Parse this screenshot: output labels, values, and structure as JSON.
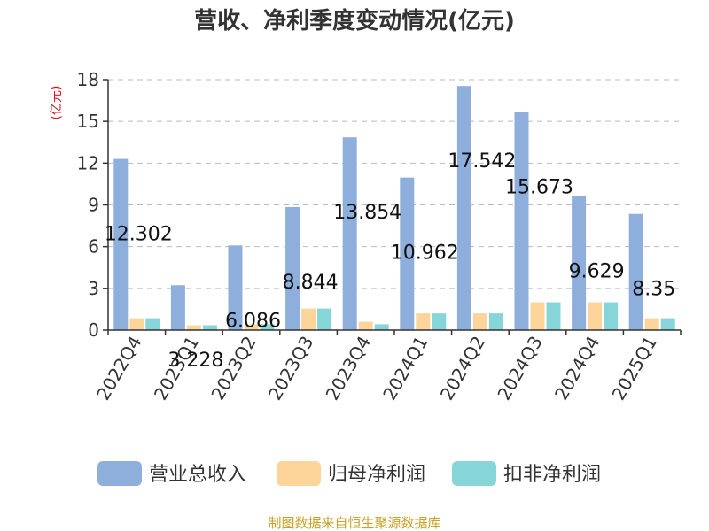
{
  "chart_data": {
    "type": "bar",
    "title": "营收、净利季度变动情况(亿元)",
    "ylabel": "(亿元)",
    "xlabel": "",
    "ylim": [
      0,
      18
    ],
    "yticks": [
      0,
      3,
      6,
      9,
      12,
      15,
      18
    ],
    "grid": true,
    "legend_position": "bottom",
    "categories": [
      "2022Q4",
      "2023Q1",
      "2023Q2",
      "2023Q3",
      "2023Q4",
      "2024Q1",
      "2024Q2",
      "2024Q3",
      "2024Q4",
      "2025Q1"
    ],
    "series": [
      {
        "name": "营业总收入",
        "color": "#8eaedc",
        "values": [
          12.302,
          3.228,
          6.086,
          8.844,
          13.854,
          10.962,
          17.542,
          15.673,
          9.629,
          8.35
        ],
        "show_labels": true
      },
      {
        "name": "归母净利润",
        "color": "#fdd59a",
        "values": [
          0.85,
          0.35,
          0.42,
          1.55,
          0.6,
          1.2,
          1.2,
          2.0,
          2.0,
          0.85
        ],
        "show_labels": false
      },
      {
        "name": "扣非净利润",
        "color": "#86d5d8",
        "values": [
          0.85,
          0.35,
          0.42,
          1.55,
          0.42,
          1.2,
          1.2,
          2.0,
          2.0,
          0.85
        ],
        "show_labels": false
      }
    ]
  },
  "source_text": "制图数据来自恒生聚源数据库"
}
